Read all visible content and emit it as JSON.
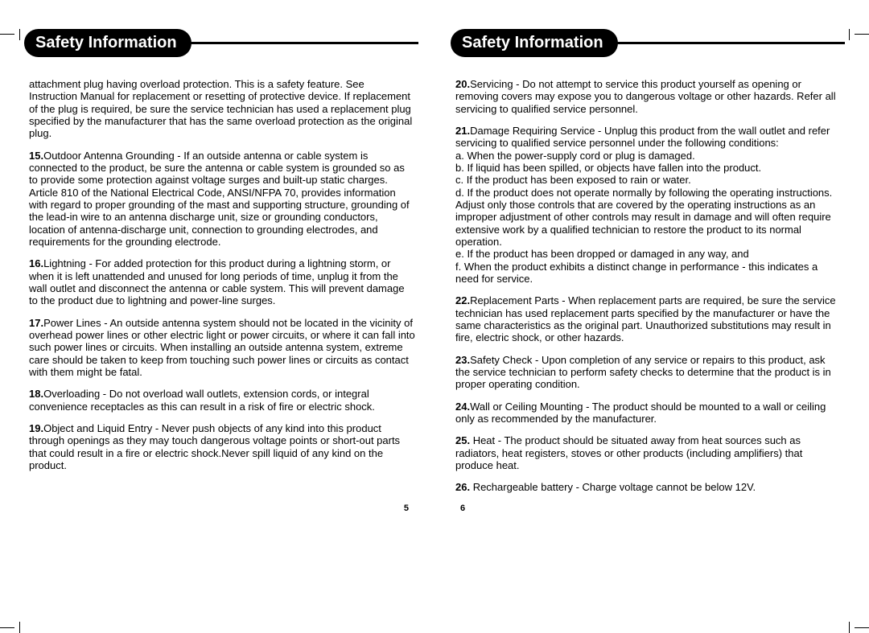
{
  "left": {
    "title": "Safety Information",
    "pageNumber": "5",
    "paragraphs": [
      {
        "num": "",
        "text": "attachment plug having overload protection. This is a safety feature. See Instruction Manual for replacement or resetting of protective device. If replacement of the plug is required, be sure the service technician has used a replacement plug specified by the manufacturer that has the same overload protection as the original plug."
      },
      {
        "num": "15.",
        "text": "Outdoor Antenna Grounding - If an outside antenna or cable system is connected to the product, be sure the antenna or cable system is grounded so as to provide some protection against voltage surges and built-up static charges. Article 810 of the National Electrical Code, ANSI/NFPA 70, provides information with regard to proper grounding of the mast and supporting structure, grounding of the lead-in wire to an antenna discharge unit, size or grounding conductors, location of antenna-discharge unit, connection to grounding electrodes, and requirements for the grounding electrode."
      },
      {
        "num": "16.",
        "text": "Lightning - For added protection for this product during a lightning storm, or when it is left unattended and unused for long periods of time, unplug it from the wall outlet and disconnect the antenna or cable system. This will prevent damage to the product due to lightning and power-line surges."
      },
      {
        "num": "17.",
        "text": "Power Lines - An outside antenna system should not be located in the vicinity of overhead power lines or other electric light or power circuits, or where it can fall into such power lines or circuits. When installing an outside antenna system, extreme care should be taken to keep from touching such power lines or circuits as contact with them might be fatal."
      },
      {
        "num": "18.",
        "text": "Overloading - Do not overload wall outlets, extension cords, or integral convenience receptacles as this can result in a risk of fire or electric shock."
      },
      {
        "num": "19.",
        "text": "Object and Liquid Entry - Never push objects of any kind into this product through openings as they may touch dangerous voltage points or short-out parts that could result in a fire or electric shock.Never spill liquid of any kind on the product."
      }
    ]
  },
  "right": {
    "title": "Safety Information",
    "pageNumber": "6",
    "paragraphs": [
      {
        "num": "20.",
        "text": "Servicing - Do not attempt to service this product yourself as opening or removing covers may expose you to dangerous voltage or other hazards. Refer all servicing to qualified service personnel."
      },
      {
        "num": "21.",
        "text": "Damage Requiring Service - Unplug this product from the wall outlet and refer servicing to qualified service personnel under the following conditions:\na. When the power-supply cord or plug is damaged.\nb. If liquid has been spilled, or objects have fallen into the product.\nc. If the product has been exposed to rain or water.\nd. If the product does not operate normally by following the operating instructions. Adjust only those controls that are covered by the operating instructions as an improper adjustment of other controls may result in damage and will often require extensive work by a qualified technician to restore the product to its normal operation.\ne. If the product has been dropped or damaged in any way, and\nf. When the product exhibits a distinct change in performance - this indicates a need for service."
      },
      {
        "num": "22.",
        "text": "Replacement Parts - When replacement parts are required, be sure the service technician has used replacement parts specified by the manufacturer or have the same characteristics as the original part. Unauthorized substitutions may result in fire, electric shock, or other hazards."
      },
      {
        "num": "23.",
        "text": "Safety Check - Upon completion of any service or repairs to this product, ask the service technician to perform safety checks to determine that the product is in proper operating condition."
      },
      {
        "num": "24.",
        "text": "Wall or Ceiling Mounting - The product should be mounted to a wall or ceiling only as recommended by the manufacturer."
      },
      {
        "num": "25.",
        "text": " Heat - The product should be situated away from heat sources such as radiators, heat registers, stoves or other products (including amplifiers) that produce heat."
      },
      {
        "num": "26.",
        "text": " Rechargeable battery - Charge voltage cannot be below 12V."
      }
    ]
  },
  "style": {
    "pillBg": "#000000",
    "pillFg": "#ffffff",
    "bodyColor": "#000000",
    "bodyFontSize": 13,
    "titleFontSize": 20
  }
}
